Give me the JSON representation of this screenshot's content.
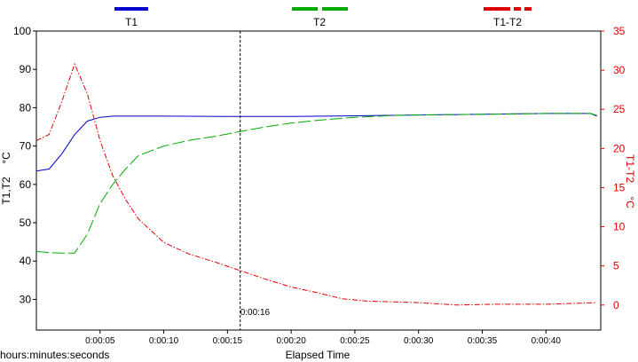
{
  "chart_data": {
    "type": "line",
    "xlabel": "Elapsed Time",
    "x_unit_label": "hours:minutes:seconds",
    "ylabel_left": "T1,T2",
    "ylabel_left_unit": "°C",
    "ylabel_right": "T1-T2",
    "ylabel_right_unit": "°C",
    "xlim": [
      0,
      44.3
    ],
    "ylim_left": [
      22,
      100
    ],
    "ylim_right": [
      -3.2,
      35
    ],
    "x_ticks": [
      {
        "value": 5,
        "label": "0:00:05"
      },
      {
        "value": 10,
        "label": "0:00:10"
      },
      {
        "value": 15,
        "label": "0:00:15"
      },
      {
        "value": 20,
        "label": "0:00:20"
      },
      {
        "value": 25,
        "label": "0:00:25"
      },
      {
        "value": 30,
        "label": "0:00:30"
      },
      {
        "value": 35,
        "label": "0:00:35"
      },
      {
        "value": 40,
        "label": "0:00:40"
      }
    ],
    "y_ticks_left": [
      {
        "value": 30,
        "label": "30"
      },
      {
        "value": 40,
        "label": "40"
      },
      {
        "value": 50,
        "label": "50"
      },
      {
        "value": 60,
        "label": "60"
      },
      {
        "value": 70,
        "label": "70"
      },
      {
        "value": 80,
        "label": "80"
      },
      {
        "value": 90,
        "label": "90"
      },
      {
        "value": 100,
        "label": "100"
      }
    ],
    "y_ticks_right": [
      {
        "value": 0,
        "label": "0"
      },
      {
        "value": 5,
        "label": "5"
      },
      {
        "value": 10,
        "label": "10"
      },
      {
        "value": 15,
        "label": "15"
      },
      {
        "value": 20,
        "label": "20"
      },
      {
        "value": 25,
        "label": "25"
      },
      {
        "value": 30,
        "label": "30"
      },
      {
        "value": 35,
        "label": "35"
      }
    ],
    "cursor": {
      "x": 16,
      "label": "0:00:16"
    },
    "legend_position": "top",
    "series": [
      {
        "name": "T1",
        "axis": "left",
        "color": "#0000cc",
        "style": "solid",
        "x": [
          0,
          1,
          2,
          3,
          4,
          5,
          6,
          8,
          10,
          15,
          20,
          25,
          30,
          35,
          40,
          43.5,
          44
        ],
        "y": [
          63.5,
          64,
          68,
          73,
          76.5,
          77.5,
          77.8,
          77.8,
          77.8,
          77.7,
          77.7,
          77.9,
          78.1,
          78.3,
          78.5,
          78.5,
          77.8
        ]
      },
      {
        "name": "T2",
        "axis": "left",
        "color": "#00aa00",
        "style": "long-dash",
        "x": [
          0,
          1,
          2,
          3,
          4,
          5,
          6,
          7,
          8,
          10,
          12,
          14,
          16,
          18,
          20,
          22,
          25,
          28,
          30,
          35,
          40,
          43.5,
          44
        ],
        "y": [
          42.5,
          42.2,
          42.1,
          42.1,
          47,
          55,
          60,
          64,
          67.5,
          70,
          71.5,
          72.5,
          73.8,
          75,
          76,
          76.7,
          77.5,
          78,
          78.1,
          78.3,
          78.5,
          78.5,
          78
        ]
      },
      {
        "name": "T1-T2",
        "axis": "right",
        "color": "#dd0000",
        "style": "dash-dot",
        "x": [
          0,
          1,
          2,
          3,
          4,
          5,
          6,
          7,
          8,
          10,
          12,
          14,
          16,
          18,
          20,
          22,
          24,
          26,
          28,
          30,
          33,
          36,
          40,
          44
        ],
        "y": [
          21,
          21.8,
          26,
          30.8,
          27,
          21,
          16.5,
          13.5,
          11,
          8,
          6.5,
          5.5,
          4.4,
          3.3,
          2.3,
          1.6,
          0.8,
          0.5,
          0.4,
          0.3,
          0,
          0.1,
          0.1,
          0.3
        ]
      }
    ]
  }
}
